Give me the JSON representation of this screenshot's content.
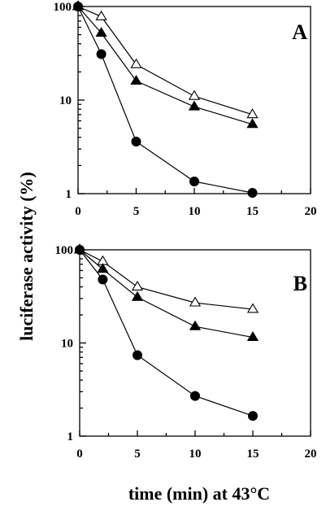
{
  "ylabel": "luciferase activity (%)",
  "xlabel": "time (min) at 43°C",
  "chart_data": [
    {
      "type": "line",
      "panel_label": "A",
      "x_scale": "linear",
      "y_scale": "log",
      "xlim": [
        0,
        20
      ],
      "ylim": [
        1,
        100
      ],
      "x_ticks": [
        "0",
        "5",
        "10",
        "15",
        "20"
      ],
      "y_ticks": [
        "1",
        "10",
        "100"
      ],
      "grid": false,
      "series": [
        {
          "marker": "open-triangle",
          "x": [
            0,
            2,
            5,
            10,
            15
          ],
          "values": [
            100,
            78,
            24,
            11,
            7
          ]
        },
        {
          "marker": "filled-triangle",
          "x": [
            0,
            2,
            5,
            10,
            15
          ],
          "values": [
            100,
            52,
            16,
            8.5,
            5.5
          ]
        },
        {
          "marker": "filled-circle",
          "x": [
            0,
            2,
            5,
            10,
            15
          ],
          "values": [
            100,
            31,
            3.6,
            1.35,
            1.02
          ]
        }
      ]
    },
    {
      "type": "line",
      "panel_label": "B",
      "x_scale": "linear",
      "y_scale": "log",
      "xlim": [
        0,
        20
      ],
      "ylim": [
        1,
        100
      ],
      "x_ticks": [
        "0",
        "5",
        "10",
        "15",
        "20"
      ],
      "y_ticks": [
        "1",
        "10",
        "100"
      ],
      "grid": false,
      "series": [
        {
          "marker": "open-triangle",
          "x": [
            0,
            2,
            5,
            10,
            15
          ],
          "values": [
            100,
            75,
            40,
            27,
            23
          ]
        },
        {
          "marker": "filled-triangle",
          "x": [
            0,
            2,
            5,
            10,
            15
          ],
          "values": [
            100,
            62,
            31,
            15,
            11.5
          ]
        },
        {
          "marker": "filled-circle",
          "x": [
            0,
            2,
            5,
            10,
            15
          ],
          "values": [
            100,
            48,
            7.4,
            2.7,
            1.65
          ]
        }
      ]
    }
  ]
}
